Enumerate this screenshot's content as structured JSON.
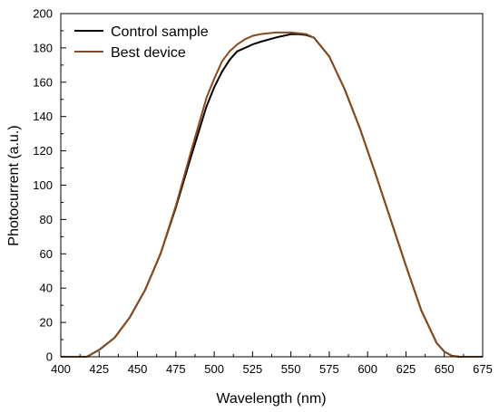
{
  "chart_data": {
    "type": "line",
    "title": "",
    "xlabel": "Wavelength (nm)",
    "ylabel": "Photocurrent (a.u.)",
    "xlim": [
      400,
      675
    ],
    "ylim": [
      0,
      200
    ],
    "x_ticks": [
      400,
      425,
      450,
      475,
      500,
      525,
      550,
      575,
      600,
      625,
      650,
      675
    ],
    "y_ticks": [
      0,
      20,
      40,
      60,
      80,
      100,
      120,
      140,
      160,
      180,
      200
    ],
    "grid": false,
    "legend_position": "top-left",
    "series": [
      {
        "name": "Control sample",
        "color": "#000000",
        "x": [
          400,
          410,
          417,
          425,
          435,
          445,
          455,
          465,
          475,
          485,
          495,
          500,
          505,
          510,
          515,
          520,
          525,
          530,
          540,
          550,
          555,
          560,
          565,
          575,
          585,
          595,
          605,
          615,
          625,
          635,
          645,
          650,
          655,
          660,
          665,
          675
        ],
        "y": [
          0,
          0,
          0,
          4,
          11,
          23,
          39,
          60,
          87,
          117,
          146,
          157,
          166,
          173,
          178,
          180,
          182,
          183.5,
          186,
          188,
          188,
          187.5,
          186,
          175,
          156,
          133,
          107,
          80,
          53,
          27,
          8,
          3,
          0.5,
          0,
          0,
          0
        ]
      },
      {
        "name": "Best device",
        "color": "#8B4A1C",
        "x": [
          400,
          410,
          417,
          425,
          435,
          445,
          455,
          465,
          475,
          485,
          495,
          500,
          505,
          510,
          515,
          520,
          525,
          530,
          540,
          550,
          555,
          560,
          565,
          575,
          585,
          595,
          605,
          615,
          625,
          635,
          645,
          650,
          655,
          660,
          665,
          675
        ],
        "y": [
          0,
          0,
          0,
          4,
          11,
          23,
          39,
          60,
          88,
          120,
          151,
          162,
          172,
          178,
          182,
          185,
          187,
          188,
          189,
          189,
          188.5,
          188,
          186,
          175,
          156,
          133,
          107,
          80,
          53,
          27,
          8,
          3,
          0.5,
          0,
          0,
          0
        ]
      }
    ]
  }
}
